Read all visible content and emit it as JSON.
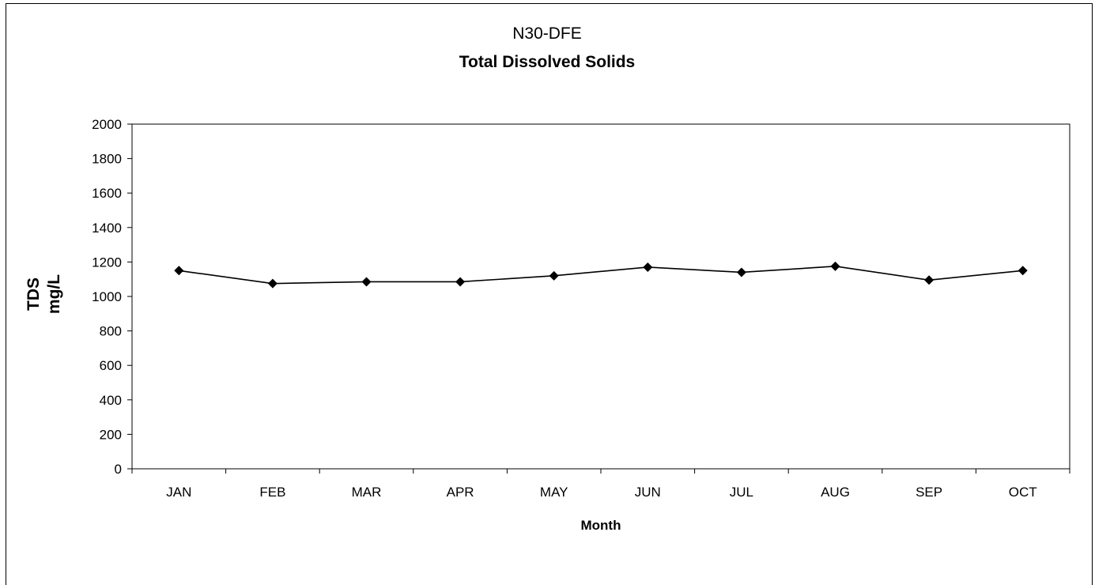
{
  "chart_data": {
    "type": "line",
    "title": "N30-DFE",
    "subtitle": "Total Dissolved Solids",
    "xlabel": "Month",
    "ylabel": [
      "TDS",
      "mg/L"
    ],
    "categories": [
      "JAN",
      "FEB",
      "MAR",
      "APR",
      "MAY",
      "JUN",
      "JUL",
      "AUG",
      "SEP",
      "OCT"
    ],
    "series": [
      {
        "values": [
          1150,
          1075,
          1085,
          1085,
          1120,
          1170,
          1140,
          1175,
          1095,
          1150
        ],
        "color": "#000000",
        "marker": "diamond"
      }
    ],
    "ylim": [
      0,
      2000
    ],
    "yticks": [
      0,
      200,
      400,
      600,
      800,
      1000,
      1200,
      1400,
      1600,
      1800,
      2000
    ],
    "grid": false,
    "legend": "none"
  }
}
